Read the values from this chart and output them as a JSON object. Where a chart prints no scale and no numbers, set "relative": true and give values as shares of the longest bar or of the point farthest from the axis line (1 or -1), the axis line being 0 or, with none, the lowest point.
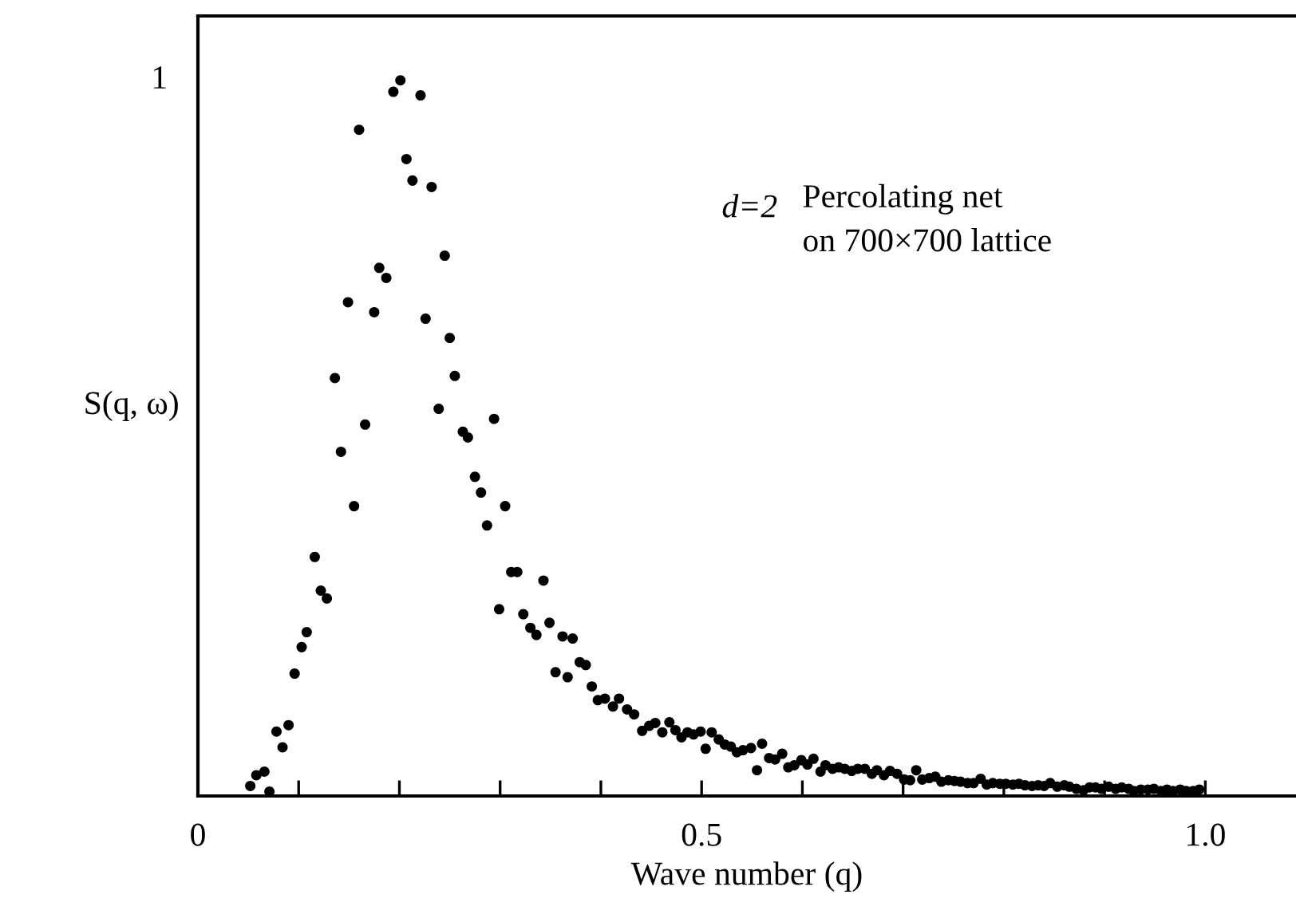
{
  "chart_data": {
    "type": "scatter",
    "xlabel": "Wave number (q)",
    "ylabel": "S(q, ω)",
    "annotations": [
      "d=2",
      "Percolating net\non 700×700 lattice",
      "1"
    ],
    "relative": true,
    "xlim": [
      0,
      1.09
    ],
    "xticks": [
      0,
      {
        "value": 0.1,
        "label": null
      },
      {
        "value": 0.2,
        "label": null
      },
      {
        "value": 0.3,
        "label": null
      },
      {
        "value": 0.4,
        "label": null
      },
      0.5,
      {
        "value": 0.6,
        "label": null
      },
      {
        "value": 0.7,
        "label": null
      },
      {
        "value": 0.8,
        "label": null
      },
      {
        "value": 0.9,
        "label": null
      },
      {
        "value": 1.0,
        "label": "1.0"
      }
    ],
    "grid": false,
    "legend": false,
    "marker": "circle",
    "series": [
      {
        "color": "#000000",
        "x": [
          0.052,
          0.058,
          0.066,
          0.071,
          0.078,
          0.084,
          0.09,
          0.096,
          0.103,
          0.108,
          0.116,
          0.122,
          0.128,
          0.136,
          0.142,
          0.149,
          0.155,
          0.16,
          0.166,
          0.175,
          0.18,
          0.187,
          0.194,
          0.201,
          0.207,
          0.213,
          0.221,
          0.226,
          0.232,
          0.239,
          0.245,
          0.25,
          0.255,
          0.263,
          0.268,
          0.275,
          0.281,
          0.287,
          0.294,
          0.299,
          0.305,
          0.311,
          0.317,
          0.323,
          0.33,
          0.336,
          0.343,
          0.349,
          0.355,
          0.362,
          0.367,
          0.372,
          0.379,
          0.385,
          0.391,
          0.397,
          0.404,
          0.412,
          0.418,
          0.426,
          0.433,
          0.441,
          0.448,
          0.454,
          0.461,
          0.468,
          0.474,
          0.48,
          0.486,
          0.492,
          0.499,
          0.504,
          0.51,
          0.517,
          0.523,
          0.529,
          0.535,
          0.541,
          0.549,
          0.555,
          0.56,
          0.567,
          0.573,
          0.58,
          0.586,
          0.592,
          0.599,
          0.605,
          0.611,
          0.618,
          0.623,
          0.63,
          0.636,
          0.642,
          0.649,
          0.655,
          0.662,
          0.669,
          0.674,
          0.681,
          0.687,
          0.694,
          0.701,
          0.707,
          0.713,
          0.719,
          0.726,
          0.732,
          0.738,
          0.745,
          0.751,
          0.757,
          0.764,
          0.77,
          0.777,
          0.783,
          0.789,
          0.796,
          0.802,
          0.809,
          0.815,
          0.821,
          0.828,
          0.834,
          0.84,
          0.846,
          0.853,
          0.86,
          0.865,
          0.872,
          0.879,
          0.885,
          0.891,
          0.897,
          0.904,
          0.911,
          0.917,
          0.924,
          0.929,
          0.936,
          0.943,
          0.949,
          0.956,
          0.962,
          0.968,
          0.975,
          0.981,
          0.988,
          0.994
        ],
        "values": [
          0.014,
          0.029,
          0.034,
          0.006,
          0.09,
          0.068,
          0.099,
          0.171,
          0.208,
          0.229,
          0.334,
          0.287,
          0.276,
          0.584,
          0.481,
          0.69,
          0.405,
          0.931,
          0.519,
          0.676,
          0.738,
          0.724,
          0.984,
          1.0,
          0.89,
          0.86,
          0.979,
          0.667,
          0.851,
          0.541,
          0.755,
          0.64,
          0.587,
          0.509,
          0.501,
          0.446,
          0.424,
          0.378,
          0.527,
          0.261,
          0.405,
          0.313,
          0.313,
          0.254,
          0.235,
          0.225,
          0.301,
          0.242,
          0.173,
          0.223,
          0.166,
          0.22,
          0.187,
          0.183,
          0.153,
          0.134,
          0.136,
          0.125,
          0.136,
          0.121,
          0.114,
          0.091,
          0.098,
          0.102,
          0.089,
          0.103,
          0.092,
          0.082,
          0.089,
          0.086,
          0.09,
          0.066,
          0.089,
          0.079,
          0.072,
          0.069,
          0.061,
          0.064,
          0.067,
          0.036,
          0.073,
          0.053,
          0.051,
          0.059,
          0.04,
          0.043,
          0.05,
          0.044,
          0.052,
          0.034,
          0.043,
          0.038,
          0.04,
          0.038,
          0.035,
          0.038,
          0.038,
          0.031,
          0.036,
          0.029,
          0.035,
          0.031,
          0.023,
          0.022,
          0.036,
          0.023,
          0.025,
          0.027,
          0.02,
          0.022,
          0.021,
          0.02,
          0.018,
          0.018,
          0.024,
          0.016,
          0.018,
          0.017,
          0.017,
          0.016,
          0.017,
          0.015,
          0.014,
          0.015,
          0.014,
          0.018,
          0.013,
          0.015,
          0.013,
          0.01,
          0.008,
          0.012,
          0.012,
          0.01,
          0.013,
          0.01,
          0.012,
          0.01,
          0.007,
          0.009,
          0.009,
          0.01,
          0.007,
          0.009,
          0.007,
          0.009,
          0.007,
          0.007,
          0.009
        ]
      }
    ]
  }
}
